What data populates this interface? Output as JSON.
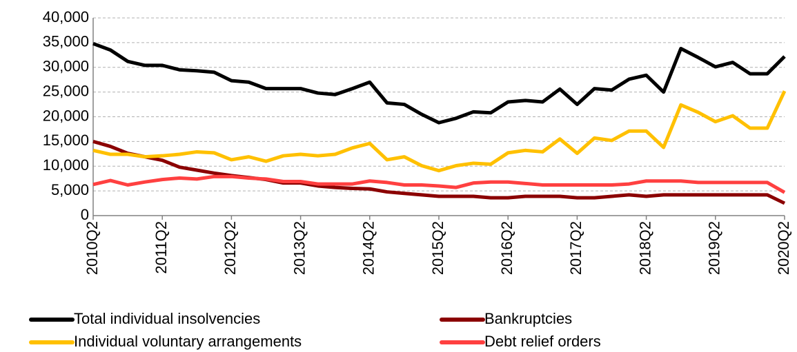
{
  "chart_data": {
    "type": "line",
    "categories": [
      "2010Q2",
      null,
      null,
      null,
      "2011Q2",
      null,
      null,
      null,
      "2012Q2",
      null,
      null,
      null,
      "2013Q2",
      null,
      null,
      null,
      "2014Q2",
      null,
      null,
      null,
      "2015Q2",
      null,
      null,
      null,
      "2016Q2",
      null,
      null,
      null,
      "2017Q2",
      null,
      null,
      null,
      "2018Q2",
      null,
      null,
      null,
      "2019Q2",
      null,
      null,
      null,
      "2020Q2"
    ],
    "series": [
      {
        "name": "Total individual insolvencies",
        "color": "#000000",
        "values": [
          34800,
          33500,
          31200,
          30400,
          30400,
          29500,
          29300,
          29000,
          27300,
          27000,
          25700,
          25700,
          25700,
          24800,
          24500,
          25700,
          27000,
          22800,
          22500,
          20500,
          18800,
          19700,
          21000,
          20800,
          23000,
          23300,
          23000,
          25600,
          22500,
          25700,
          25400,
          27600,
          28400,
          25000,
          33800,
          32000,
          30100,
          31000,
          28700,
          28700,
          32200
        ]
      },
      {
        "name": "Bankruptcies",
        "color": "#8b0000",
        "values": [
          15000,
          14000,
          12600,
          11900,
          11200,
          9800,
          9200,
          8600,
          8100,
          7700,
          7300,
          6600,
          6600,
          6000,
          5700,
          5500,
          5400,
          4800,
          4500,
          4200,
          3900,
          3900,
          3900,
          3600,
          3600,
          3900,
          3900,
          3900,
          3600,
          3600,
          3900,
          4200,
          3900,
          4200,
          4200,
          4200,
          4200,
          4200,
          4200,
          4200,
          2500
        ]
      },
      {
        "name": "Individual voluntary arrangements",
        "color": "#ffc000",
        "values": [
          13200,
          12400,
          12400,
          11900,
          12100,
          12400,
          12900,
          12700,
          11300,
          11900,
          11000,
          12100,
          12400,
          12100,
          12400,
          13700,
          14600,
          11300,
          11900,
          10100,
          9100,
          10100,
          10600,
          10400,
          12700,
          13200,
          12900,
          15500,
          12600,
          15700,
          15200,
          17100,
          17100,
          13800,
          22400,
          20900,
          19000,
          20200,
          17700,
          17700,
          25200
        ]
      },
      {
        "name": "Debt relief orders",
        "color": "#ff4040",
        "values": [
          6300,
          7100,
          6200,
          6800,
          7300,
          7600,
          7400,
          7900,
          7900,
          7600,
          7400,
          6900,
          6900,
          6400,
          6400,
          6400,
          7000,
          6700,
          6200,
          6200,
          6000,
          5700,
          6600,
          6800,
          6800,
          6500,
          6200,
          6200,
          6200,
          6200,
          6200,
          6400,
          7000,
          7000,
          7000,
          6700,
          6700,
          6700,
          6700,
          6700,
          4700
        ]
      }
    ],
    "ylim": [
      0,
      40000
    ],
    "yticks": [
      0,
      {
        "value": 5000,
        "label": "5,000"
      },
      {
        "value": 10000,
        "label": "10,000"
      },
      {
        "value": 15000,
        "label": "15,000"
      },
      {
        "value": 20000,
        "label": "20,000"
      },
      {
        "value": 25000,
        "label": "25,000"
      },
      {
        "value": 30000,
        "label": "30,000"
      },
      {
        "value": 35000,
        "label": "35,000"
      },
      {
        "value": 40000,
        "label": "40,000"
      }
    ],
    "grid": true
  }
}
